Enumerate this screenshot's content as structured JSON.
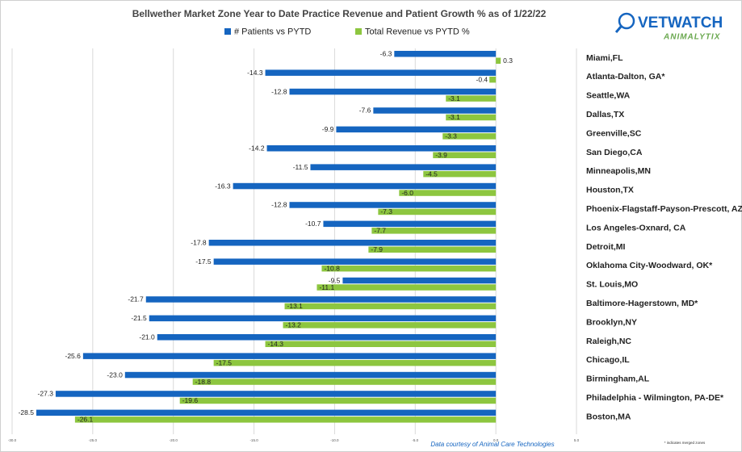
{
  "chart_data": {
    "type": "bar",
    "orientation": "horizontal",
    "title": "Bellwether Market Zone Year to Date Practice Revenue and Patient Growth % as of 1/22/22",
    "logo": {
      "name": "VETWATCH",
      "tagline": "ANIMALYTIX"
    },
    "source": "Data courtesy of Animal Care Technologies",
    "footnote": "* indicates merged zones",
    "categories": [
      "Miami,FL",
      "Atlanta-Dalton, GA*",
      "Seattle,WA",
      "Dallas,TX",
      "Greenville,SC",
      "San Diego,CA",
      "Minneapolis,MN",
      "Houston,TX",
      "Phoenix-Flagstaff-Payson-Prescott, AZ",
      "Los Angeles-Oxnard, CA",
      "Detroit,MI",
      "Oklahoma City-Woodward, OK*",
      "St. Louis,MO",
      "Baltimore-Hagerstown, MD*",
      "Brooklyn,NY",
      "Raleigh,NC",
      "Chicago,IL",
      "Birmingham,AL",
      "Philadelphia - Wilmington, PA-DE*",
      "Boston,MA"
    ],
    "series": [
      {
        "name": "# Patients vs PYTD",
        "color": "#1565c0",
        "values": [
          -6.3,
          -14.3,
          -12.8,
          -7.6,
          -9.9,
          -14.2,
          -11.5,
          -16.3,
          -12.8,
          -10.7,
          -17.8,
          -17.5,
          -9.5,
          -21.7,
          -21.5,
          -21.0,
          -25.6,
          -23.0,
          -27.3,
          -28.5
        ],
        "value_labels": [
          "-6.3",
          "-14.3",
          "-12.8",
          "-7.6",
          "-9.9",
          "-14.2",
          "-11.5",
          "-16.3",
          "-12.8",
          "-10.7",
          "-17.8",
          "-17.5",
          "-9.5",
          "-21.7",
          "-21.5",
          "-21.0",
          "-25.6",
          "-23.0",
          "-27.3",
          "-28.5"
        ]
      },
      {
        "name": "Total Revenue vs PYTD %",
        "color": "#8dc63f",
        "values": [
          0.3,
          -0.4,
          -3.1,
          -3.1,
          -3.3,
          -3.9,
          -4.5,
          -6.0,
          -7.3,
          -7.7,
          -7.9,
          -10.8,
          -11.1,
          -13.1,
          -13.2,
          -14.3,
          -17.5,
          -18.8,
          -19.6,
          -26.1
        ],
        "value_labels": [
          "0.3",
          "-0.4",
          "-3.1",
          "-3.1",
          "-3.3",
          "-3.9",
          "-4.5",
          "-6.0",
          "-7.3",
          "-7.7",
          "-7.9",
          "-10.8",
          "-11.1",
          "-13.1",
          "-13.2",
          "-14.3",
          "-17.5",
          "-18.8",
          "-19.6",
          "-26.1"
        ]
      }
    ],
    "xlim": [
      -30,
      5
    ],
    "xticks": [
      {
        "value": -30,
        "label": "-30.0"
      },
      {
        "value": -25,
        "label": "-25.0"
      },
      {
        "value": -20,
        "label": "-20.0"
      },
      {
        "value": -15,
        "label": "-15.0"
      },
      {
        "value": -10,
        "label": "-10.0"
      },
      {
        "value": -5,
        "label": "-5.0"
      },
      {
        "value": 0,
        "label": "0.0"
      },
      {
        "value": 5,
        "label": "5.0"
      }
    ],
    "grid": true,
    "legend": "top"
  }
}
